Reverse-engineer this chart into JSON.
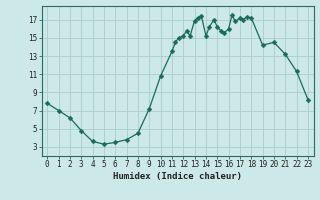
{
  "x": [
    0,
    1,
    2,
    3,
    4,
    5,
    6,
    7,
    8,
    9,
    10,
    11,
    11.3,
    11.6,
    12,
    12.3,
    12.6,
    13,
    13.3,
    13.6,
    14,
    14.3,
    14.7,
    15,
    15.3,
    15.6,
    16,
    16.3,
    16.6,
    17,
    17.3,
    17.6,
    18,
    19,
    20,
    21,
    22,
    23
  ],
  "y": [
    7.8,
    7.0,
    6.2,
    4.8,
    3.6,
    3.3,
    3.5,
    3.8,
    4.5,
    7.2,
    10.8,
    13.5,
    14.5,
    15.0,
    15.2,
    15.8,
    15.2,
    16.9,
    17.2,
    17.4,
    15.2,
    16.2,
    17.0,
    16.2,
    15.8,
    15.5,
    16.0,
    17.5,
    16.8,
    17.2,
    17.0,
    17.3,
    17.2,
    14.2,
    14.5,
    13.2,
    11.3,
    8.2
  ],
  "xlabel": "Humidex (Indice chaleur)",
  "xlim": [
    -0.5,
    23.5
  ],
  "ylim": [
    2.0,
    18.5
  ],
  "yticks": [
    3,
    5,
    7,
    9,
    11,
    13,
    15,
    17
  ],
  "xticks": [
    0,
    1,
    2,
    3,
    4,
    5,
    6,
    7,
    8,
    9,
    10,
    11,
    12,
    13,
    14,
    15,
    16,
    17,
    18,
    19,
    20,
    21,
    22,
    23
  ],
  "bg_color": "#cce8e8",
  "line_color": "#1a6b5a",
  "grid_color": "#aacccc",
  "marker_size": 2.5,
  "line_width": 0.9,
  "xlabel_fontsize": 6.5,
  "tick_fontsize": 5.5
}
